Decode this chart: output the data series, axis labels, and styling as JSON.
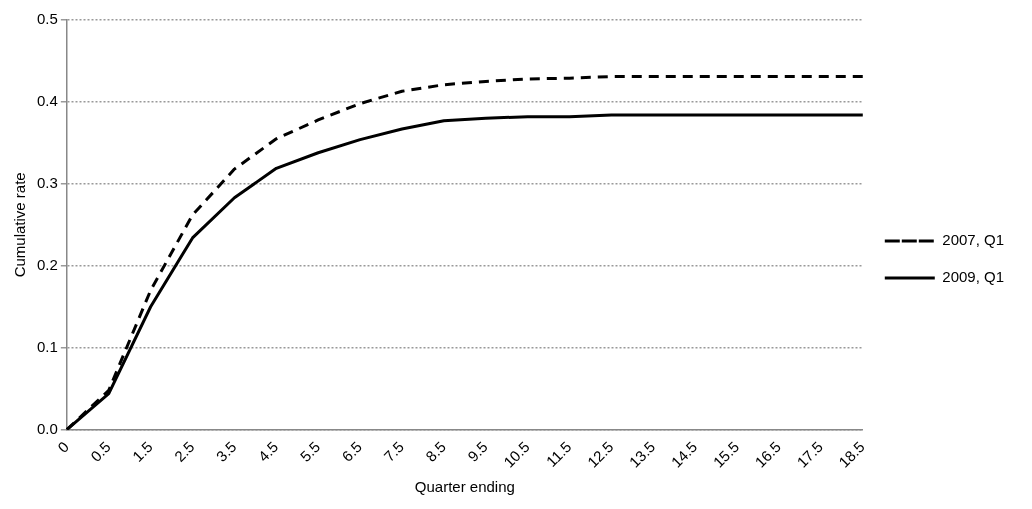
{
  "chart_data": {
    "type": "line",
    "xlabel": "Quarter ending",
    "ylabel": "Cumulative rate",
    "categories": [
      "0",
      "0.5",
      "1.5",
      "2.5",
      "3.5",
      "4.5",
      "5.5",
      "6.5",
      "7.5",
      "8.5",
      "9.5",
      "10.5",
      "11.5",
      "12.5",
      "13.5",
      "14.5",
      "15.5",
      "16.5",
      "17.5",
      "18.5"
    ],
    "series": [
      {
        "name": "2007, Q1",
        "color": "#000000",
        "line_style": "dashed",
        "values": [
          0,
          0.048,
          0.17,
          0.262,
          0.318,
          0.355,
          0.378,
          0.398,
          0.413,
          0.421,
          0.425,
          0.428,
          0.429,
          0.431,
          0.431,
          0.431,
          0.431,
          0.431,
          0.431,
          0.431
        ]
      },
      {
        "name": "2009, Q1",
        "color": "#000000",
        "line_style": "solid",
        "values": [
          0,
          0.044,
          0.15,
          0.234,
          0.283,
          0.319,
          0.338,
          0.354,
          0.367,
          0.377,
          0.38,
          0.382,
          0.382,
          0.384,
          0.384,
          0.384,
          0.384,
          0.384,
          0.384,
          0.384
        ]
      }
    ],
    "ylim": [
      0,
      0.5
    ],
    "yticks": [
      {
        "value": 0,
        "label": "0.0"
      },
      0.1,
      0.2,
      0.3,
      0.4,
      0.5
    ],
    "grid": "y",
    "legend": "right",
    "marker": "none"
  }
}
